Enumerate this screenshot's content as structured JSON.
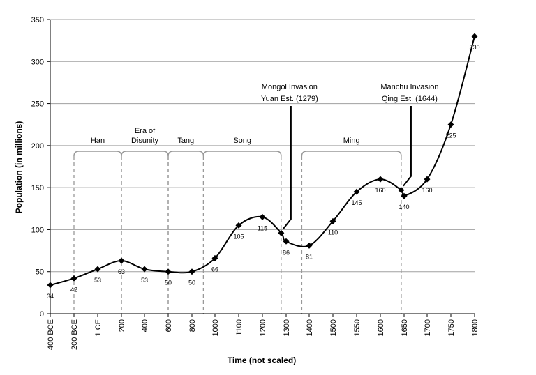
{
  "chart_data": {
    "type": "line",
    "xlabel": "Time (not scaled)",
    "ylabel": "Population (in millions)",
    "ylim": [
      0,
      350
    ],
    "yticks": [
      0,
      50,
      100,
      150,
      200,
      250,
      300,
      350
    ],
    "grid": "horizontal",
    "x_scale": "categorical (not scaled)",
    "categories": [
      "400 BCE",
      "200 BCE",
      "1 CE",
      "200",
      "400",
      "600",
      "800",
      "1000",
      "1100",
      "1200",
      "1300",
      "1400",
      "1500",
      "1550",
      "1600",
      "1650",
      "1700",
      "1750",
      "1800"
    ],
    "points": [
      {
        "x": "400 BCE",
        "y": 34,
        "label": "34"
      },
      {
        "x": "200 BCE",
        "y": 42,
        "label": "42"
      },
      {
        "x": "1 CE",
        "y": 53,
        "label": "53"
      },
      {
        "x": "200",
        "y": 63,
        "label": "63"
      },
      {
        "x": "400",
        "y": 53,
        "label": "53"
      },
      {
        "x": "600",
        "y": 50,
        "label": "50"
      },
      {
        "x": "800",
        "y": 50,
        "label": "50"
      },
      {
        "x": "1000",
        "y": 66,
        "label": "66"
      },
      {
        "x": "1100",
        "y": 105,
        "label": "105"
      },
      {
        "x": "1200",
        "y": 115,
        "label": "115"
      },
      {
        "x": "1279",
        "y": 96,
        "label": ""
      },
      {
        "x": "1300",
        "y": 86,
        "label": "86"
      },
      {
        "x": "1400",
        "y": 81,
        "label": "81"
      },
      {
        "x": "1500",
        "y": 110,
        "label": "110"
      },
      {
        "x": "1550",
        "y": 145,
        "label": "145"
      },
      {
        "x": "1600",
        "y": 160,
        "label": "160"
      },
      {
        "x": "1644",
        "y": 147,
        "label": ""
      },
      {
        "x": "1650",
        "y": 140,
        "label": "140"
      },
      {
        "x": "1700",
        "y": 160,
        "label": "160"
      },
      {
        "x": "1750",
        "y": 225,
        "label": "225"
      },
      {
        "x": "1800",
        "y": 330,
        "label": "330"
      }
    ],
    "eras": [
      {
        "name": "Han",
        "from": "200 BCE",
        "to": "200"
      },
      {
        "name": "Era of Disunity",
        "name_lines": [
          "Era of",
          "Disunity"
        ],
        "from": "200",
        "to": "600"
      },
      {
        "name": "Tang",
        "from": "600",
        "to": "900"
      },
      {
        "name": "Song",
        "from": "900",
        "to": "1279"
      },
      {
        "name": "Ming",
        "from": "1368",
        "to": "1644"
      }
    ],
    "annotations": [
      {
        "lines": [
          "Mongol Invasion",
          "Yuan Est. (1279)"
        ],
        "points_to": "1279"
      },
      {
        "lines": [
          "Manchu Invasion",
          "Qing Est. (1644)"
        ],
        "points_to": "1644"
      }
    ],
    "colors": {
      "line": "#000000",
      "grid": "#a0a0a0",
      "era_bracket": "#999999",
      "background": "#ffffff"
    }
  }
}
